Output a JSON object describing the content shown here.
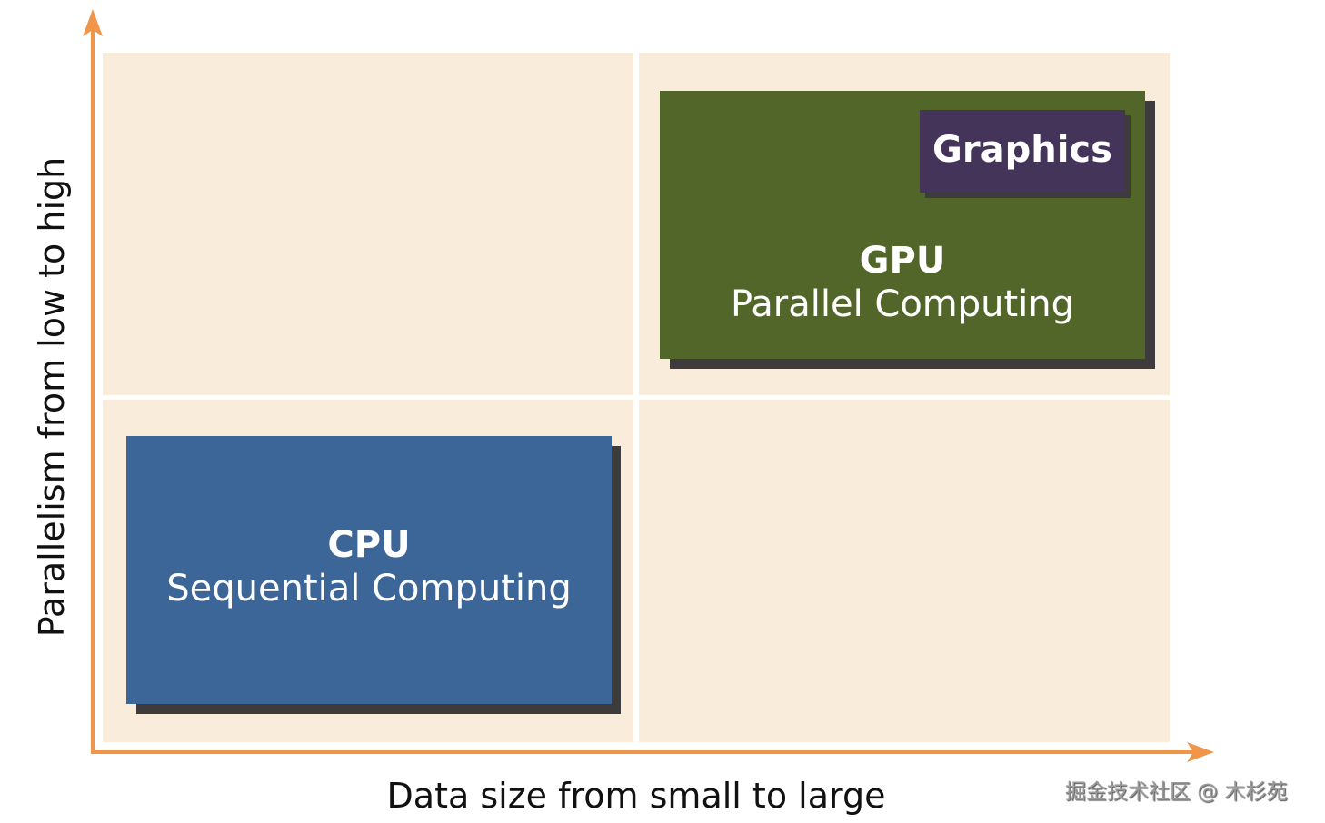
{
  "diagram": {
    "y_axis_label": "Parallelism from low to high",
    "x_axis_label": "Data size from small to large",
    "gpu": {
      "title": "GPU",
      "subtitle": "Parallel Computing"
    },
    "graphics": {
      "label": "Graphics"
    },
    "cpu": {
      "title": "CPU",
      "subtitle": "Sequential Computing"
    },
    "watermark": "掘金技术社区 @ 木杉苑"
  },
  "colors": {
    "axis": "#f0964a",
    "quadrant_bg": "#faecda",
    "gpu": "#536629",
    "graphics": "#45345a",
    "cpu": "#3b6697",
    "shadow": "#3d3b3b"
  }
}
